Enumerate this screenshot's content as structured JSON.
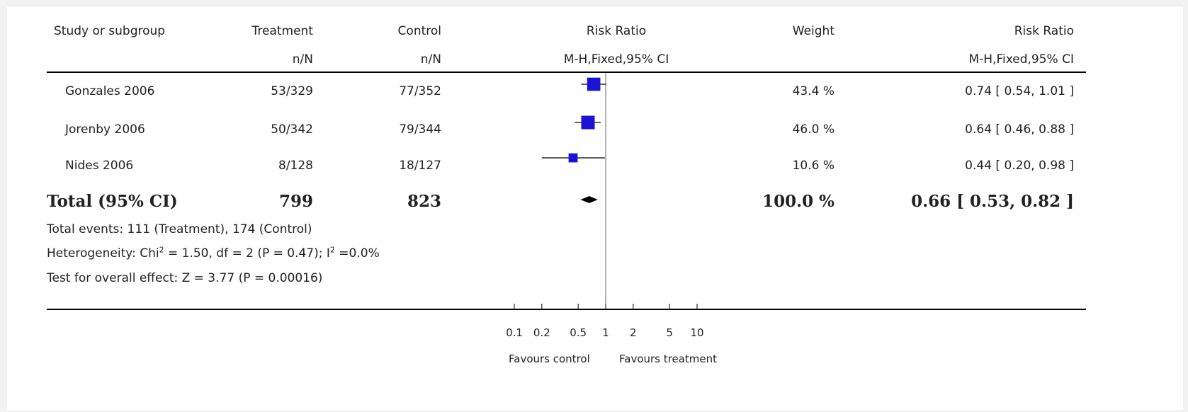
{
  "header": {
    "study": "Study or subgroup",
    "treatment": "Treatment",
    "treatment_sub": "n/N",
    "control": "Control",
    "control_sub": "n/N",
    "rr_plot": "Risk Ratio",
    "rr_plot_sub": "M-H,Fixed,95% CI",
    "weight": "Weight",
    "rr_text": "Risk Ratio",
    "rr_text_sub": "M-H,Fixed,95% CI"
  },
  "studies": [
    {
      "name": "Gonzales 2006",
      "treatment": "53/329",
      "control": "77/352",
      "weight": "43.4 %",
      "ci_text": "0.74 [ 0.54, 1.01 ]"
    },
    {
      "name": "Jorenby 2006",
      "treatment": "50/342",
      "control": "79/344",
      "weight": "46.0 %",
      "ci_text": "0.64 [ 0.46, 0.88 ]"
    },
    {
      "name": "Nides 2006",
      "treatment": "8/128",
      "control": "18/127",
      "weight": "10.6 %",
      "ci_text": "0.44 [ 0.20, 0.98 ]"
    }
  ],
  "total": {
    "label": "Total (95% CI)",
    "treatment": "799",
    "control": "823",
    "weight": "100.0 %",
    "ci_text": "0.66 [ 0.53, 0.82 ]"
  },
  "notes": {
    "events": "Total events: 111 (Treatment), 174 (Control)",
    "heterogeneity_a": "Heterogeneity: Chi",
    "sup2": "2",
    "heterogeneity_b": " = 1.50, df = 2 (P = 0.47); I",
    "heterogeneity_c": " =0.0%",
    "overall": "Test for overall effect: Z = 3.77 (P = 0.00016)"
  },
  "chart_data": {
    "type": "forest",
    "x_scale": "log",
    "xlim": [
      0.1,
      10
    ],
    "ticks": [
      {
        "value": 0.1,
        "label": "0.1"
      },
      {
        "value": 0.2,
        "label": "0.2"
      },
      {
        "value": 0.5,
        "label": "0.5"
      },
      {
        "value": 1,
        "label": "1"
      },
      {
        "value": 2,
        "label": "2"
      },
      {
        "value": 5,
        "label": "5"
      },
      {
        "value": 10,
        "label": "10"
      }
    ],
    "favours_left": "Favours control",
    "favours_right": "Favours treatment",
    "points": [
      {
        "study": "Gonzales 2006",
        "estimate": 0.74,
        "lower": 0.54,
        "upper": 1.01,
        "weight": 43.4
      },
      {
        "study": "Jorenby 2006",
        "estimate": 0.64,
        "lower": 0.46,
        "upper": 0.88,
        "weight": 46.0
      },
      {
        "study": "Nides 2006",
        "estimate": 0.44,
        "lower": 0.2,
        "upper": 0.98,
        "weight": 10.6
      }
    ],
    "pooled": {
      "estimate": 0.66,
      "lower": 0.53,
      "upper": 0.82
    },
    "colors": {
      "marker": "#1a12d6",
      "line": "#000000"
    }
  }
}
